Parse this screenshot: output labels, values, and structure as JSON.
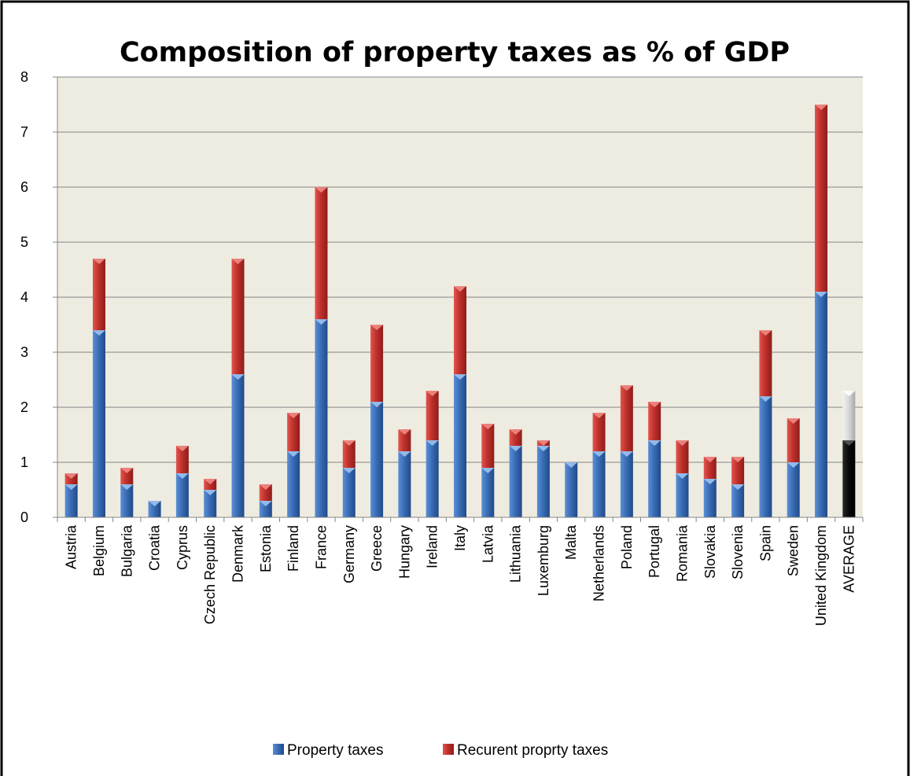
{
  "chart_data": {
    "type": "bar",
    "stacked": true,
    "title": "Composition of property taxes as % of GDP",
    "xlabel": "",
    "ylabel": "",
    "ylim": [
      0,
      8
    ],
    "yticks": [
      "0",
      "1",
      "2",
      "3",
      "4",
      "5",
      "6",
      "7",
      "8"
    ],
    "grid": true,
    "legend_position": "bottom",
    "categories": [
      "Austria",
      "Belgium",
      "Bulgaria",
      "Croatia",
      "Cyprus",
      "Czech Republic",
      "Denmark",
      "Estonia",
      "Finland",
      "France",
      "Germany",
      "Greece",
      "Hungary",
      "Ireland",
      "Italy",
      "Latvia",
      "Lithuania",
      "Luxemburg",
      "Malta",
      "Netherlands",
      "Poland",
      "Portugal",
      "Romania",
      "Slovakia",
      "Slovenia",
      "Spain",
      "Sweden",
      "United Kingdom",
      "AVERAGE"
    ],
    "series": [
      {
        "name": "Property taxes",
        "color": "#3b6fb8",
        "values": [
          0.6,
          3.4,
          0.6,
          0.3,
          0.8,
          0.5,
          2.6,
          0.3,
          1.2,
          3.6,
          0.9,
          2.1,
          1.2,
          1.4,
          2.6,
          0.9,
          1.3,
          1.3,
          1.0,
          1.2,
          1.2,
          1.4,
          0.8,
          0.7,
          0.6,
          2.2,
          1.0,
          4.1,
          1.4
        ]
      },
      {
        "name": "Recurent proprty taxes",
        "color": "#c0302c",
        "values": [
          0.2,
          1.3,
          0.3,
          0.0,
          0.5,
          0.2,
          2.1,
          0.3,
          0.7,
          2.4,
          0.5,
          1.4,
          0.4,
          0.9,
          1.6,
          0.8,
          0.3,
          0.1,
          0.0,
          0.7,
          1.2,
          0.7,
          0.6,
          0.4,
          0.5,
          1.2,
          0.8,
          3.4,
          0.9
        ]
      }
    ],
    "highlight": {
      "category": "AVERAGE",
      "colors": [
        "#111111",
        "#cfcfcf"
      ]
    },
    "plot_background": "#eeebe0"
  }
}
